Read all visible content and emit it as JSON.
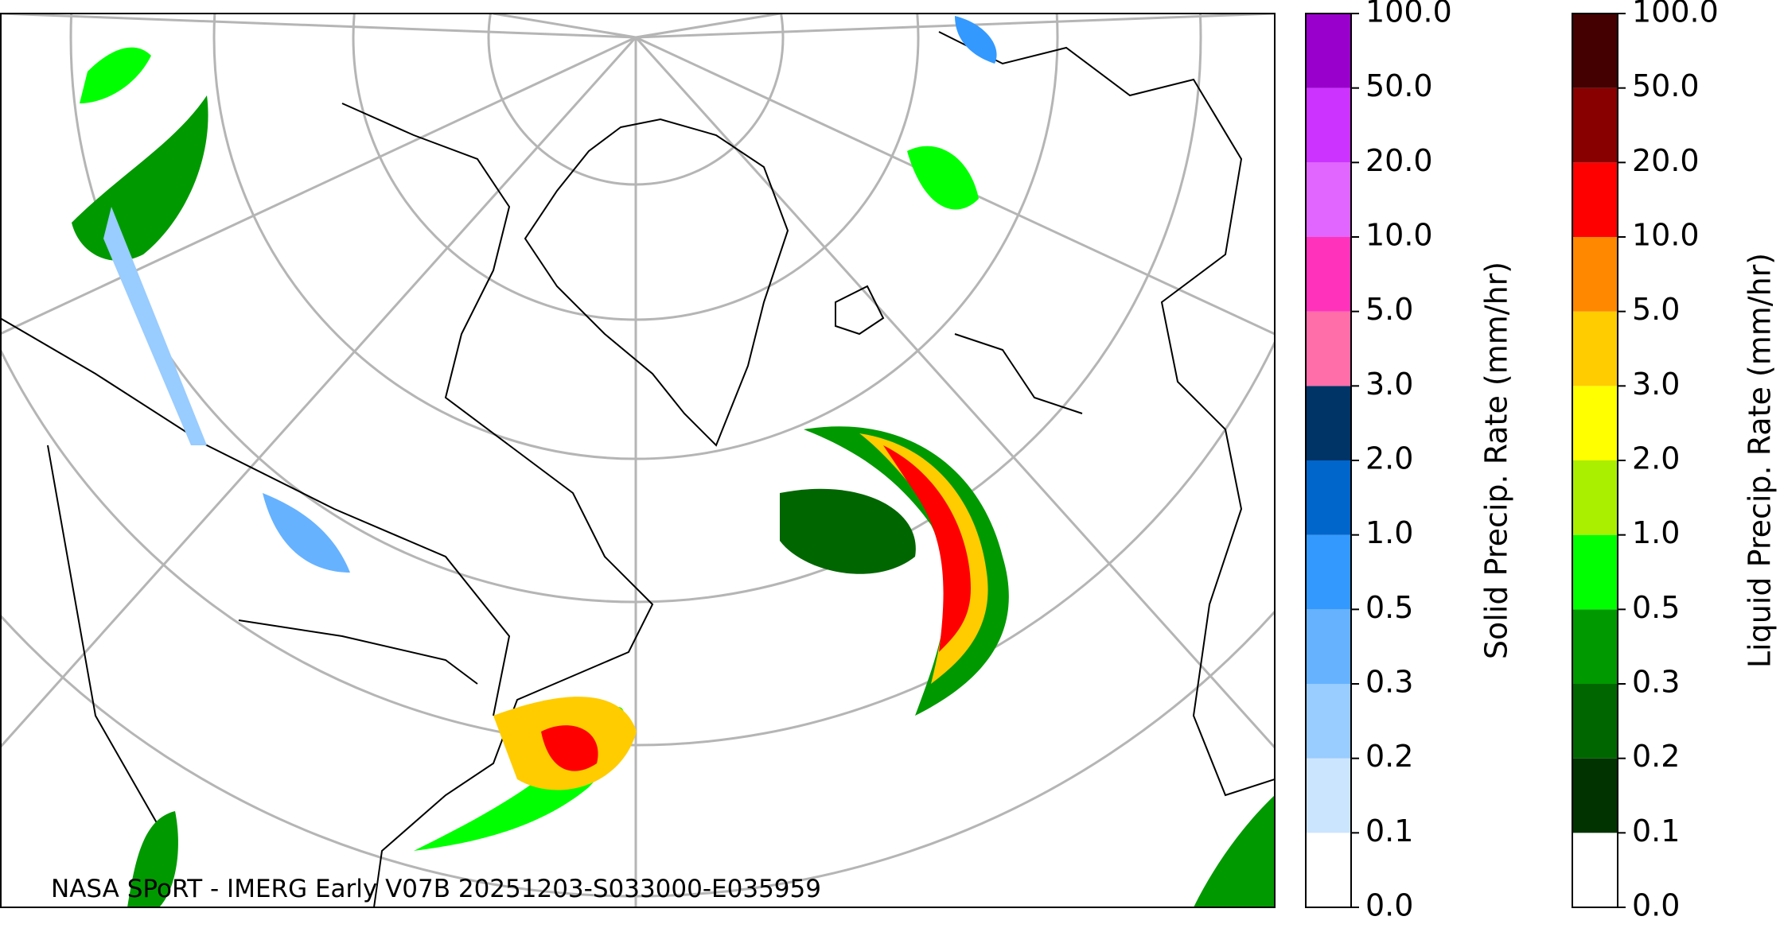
{
  "caption": "NASA SPoRT - IMERG Early V07B 20251203-S033000-E035959",
  "colorbars": [
    {
      "label": "Solid Precip. Rate (mm/hr)",
      "ticks": [
        {
          "value": 0,
          "label": "0.0"
        },
        {
          "value": 0.1,
          "label": "0.1"
        },
        {
          "value": 0.2,
          "label": "0.2"
        },
        {
          "value": 0.3,
          "label": "0.3"
        },
        {
          "value": 0.5,
          "label": "0.5"
        },
        {
          "value": 1,
          "label": "1.0"
        },
        {
          "value": 2,
          "label": "2.0"
        },
        {
          "value": 3,
          "label": "3.0"
        },
        {
          "value": 5,
          "label": "5.0"
        },
        {
          "value": 10,
          "label": "10.0"
        },
        {
          "value": 20,
          "label": "20.0"
        },
        {
          "value": 50,
          "label": "50.0"
        },
        {
          "value": 100,
          "label": "100.0"
        }
      ],
      "colors": [
        "#ffffff",
        "#cce5ff",
        "#99ccff",
        "#66b2ff",
        "#3399ff",
        "#0066cc",
        "#003366",
        "#ff6ea8",
        "#ff33bb",
        "#e066ff",
        "#cc33ff",
        "#9900cc"
      ]
    },
    {
      "label": "Liquid Precip. Rate (mm/hr)",
      "ticks": [
        {
          "value": 0,
          "label": "0.0"
        },
        {
          "value": 0.1,
          "label": "0.1"
        },
        {
          "value": 0.2,
          "label": "0.2"
        },
        {
          "value": 0.3,
          "label": "0.3"
        },
        {
          "value": 0.5,
          "label": "0.5"
        },
        {
          "value": 1,
          "label": "1.0"
        },
        {
          "value": 2,
          "label": "2.0"
        },
        {
          "value": 3,
          "label": "3.0"
        },
        {
          "value": 5,
          "label": "5.0"
        },
        {
          "value": 10,
          "label": "10.0"
        },
        {
          "value": 20,
          "label": "20.0"
        },
        {
          "value": 50,
          "label": "50.0"
        },
        {
          "value": 100,
          "label": "100.0"
        }
      ],
      "colors": [
        "#ffffff",
        "#003300",
        "#006600",
        "#009900",
        "#00ff00",
        "#aaee00",
        "#ffff00",
        "#ffcc00",
        "#ff8800",
        "#ff0000",
        "#880000",
        "#440000"
      ]
    }
  ]
}
